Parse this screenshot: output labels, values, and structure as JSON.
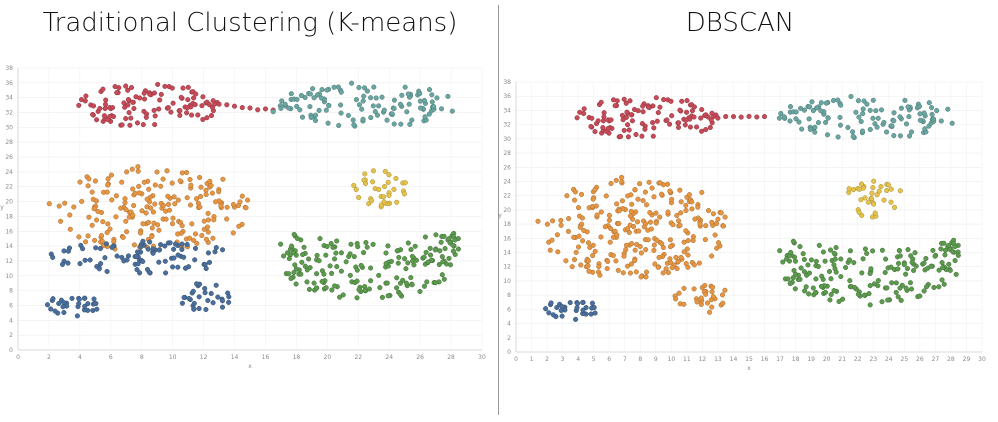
{
  "chart_data": [
    {
      "type": "scatter",
      "title": "Traditional Clustering (K-means)",
      "xlabel": "x",
      "ylabel": "y",
      "xlim": [
        0,
        30
      ],
      "ylim": [
        0,
        38
      ],
      "x_ticks": [
        0,
        2,
        4,
        6,
        8,
        10,
        12,
        14,
        16,
        18,
        20,
        22,
        24,
        26,
        28,
        30
      ],
      "y_ticks": [
        0,
        2,
        4,
        6,
        8,
        10,
        12,
        14,
        16,
        18,
        20,
        22,
        24,
        26,
        28,
        30,
        32,
        34,
        36,
        38
      ],
      "grid": true,
      "clusters": [
        {
          "color": "#c64a57",
          "center": [
            8.5,
            33.0
          ],
          "spread": [
            4.6,
            3.0
          ],
          "n": 110,
          "shape": "ellipse"
        },
        {
          "color": "#6aa6a1",
          "center": [
            22.5,
            33.0
          ],
          "spread": [
            5.8,
            3.0
          ],
          "n": 115,
          "shape": "ellipse"
        },
        {
          "color": "#e69642",
          "center": [
            8.5,
            19.0
          ],
          "spread": [
            6.6,
            5.8
          ],
          "n": 200,
          "shape": "ellipse"
        },
        {
          "color": "#e5c34a",
          "center": [
            23.2,
            21.8
          ],
          "spread": [
            2.0,
            2.6
          ],
          "n": 35,
          "shape": "ellipse"
        },
        {
          "color": "#4a6f9c",
          "center": [
            8.0,
            12.5
          ],
          "spread": [
            6.0,
            2.2
          ],
          "n": 90,
          "shape": "ellipse"
        },
        {
          "color": "#4a6f9c",
          "center": [
            3.5,
            6.0
          ],
          "spread": [
            1.7,
            1.6
          ],
          "n": 30,
          "shape": "ellipse"
        },
        {
          "color": "#4a6f9c",
          "center": [
            12.2,
            7.2
          ],
          "spread": [
            1.8,
            2.0
          ],
          "n": 30,
          "shape": "ellipse"
        },
        {
          "color": "#5c9a4e",
          "center": [
            22.7,
            11.5
          ],
          "spread": [
            5.8,
            5.5
          ],
          "n": 190,
          "shape": "smile"
        }
      ],
      "bridges": [
        {
          "color": "#c64a57",
          "from": [
            13.0,
            33.0
          ],
          "to": [
            16.5,
            32.2
          ],
          "n": 8
        },
        {
          "color": "#6aa6a1",
          "from": [
            16.5,
            32.2
          ],
          "to": [
            17.5,
            32.8
          ],
          "n": 3
        }
      ]
    },
    {
      "type": "scatter",
      "title": "DBSCAN",
      "xlabel": "x",
      "ylabel": "y",
      "xlim": [
        0,
        30
      ],
      "ylim": [
        0,
        38
      ],
      "x_ticks": [
        0,
        1,
        2,
        3,
        4,
        5,
        6,
        7,
        8,
        9,
        10,
        11,
        12,
        13,
        14,
        15,
        16,
        17,
        18,
        19,
        20,
        21,
        22,
        23,
        24,
        25,
        26,
        27,
        28,
        29,
        30
      ],
      "y_ticks": [
        0,
        2,
        4,
        6,
        8,
        10,
        12,
        14,
        16,
        18,
        20,
        22,
        24,
        26,
        28,
        30,
        32,
        34,
        36,
        38
      ],
      "grid": true,
      "clusters": [
        {
          "color": "#c64a57",
          "center": [
            8.5,
            33.0
          ],
          "spread": [
            4.6,
            3.0
          ],
          "n": 110,
          "shape": "ellipse"
        },
        {
          "color": "#6aa6a1",
          "center": [
            22.5,
            33.0
          ],
          "spread": [
            5.8,
            3.0
          ],
          "n": 115,
          "shape": "ellipse"
        },
        {
          "color": "#e69642",
          "center": [
            7.5,
            17.5
          ],
          "spread": [
            6.2,
            7.2
          ],
          "n": 260,
          "shape": "ellipse"
        },
        {
          "color": "#e69642",
          "center": [
            12.0,
            7.5
          ],
          "spread": [
            1.8,
            2.0
          ],
          "n": 30,
          "shape": "ellipse"
        },
        {
          "color": "#e5c34a",
          "center": [
            23.0,
            21.5
          ],
          "spread": [
            2.0,
            2.6
          ],
          "n": 35,
          "shape": "ellipse"
        },
        {
          "color": "#4a6f9c",
          "center": [
            3.5,
            6.0
          ],
          "spread": [
            1.7,
            1.6
          ],
          "n": 30,
          "shape": "ellipse"
        },
        {
          "color": "#5c9a4e",
          "center": [
            22.7,
            11.5
          ],
          "spread": [
            5.8,
            5.5
          ],
          "n": 190,
          "shape": "smile"
        }
      ],
      "bridges": [
        {
          "color": "#c64a57",
          "from": [
            13.0,
            33.0
          ],
          "to": [
            16.0,
            33.0
          ],
          "n": 7
        }
      ]
    }
  ]
}
